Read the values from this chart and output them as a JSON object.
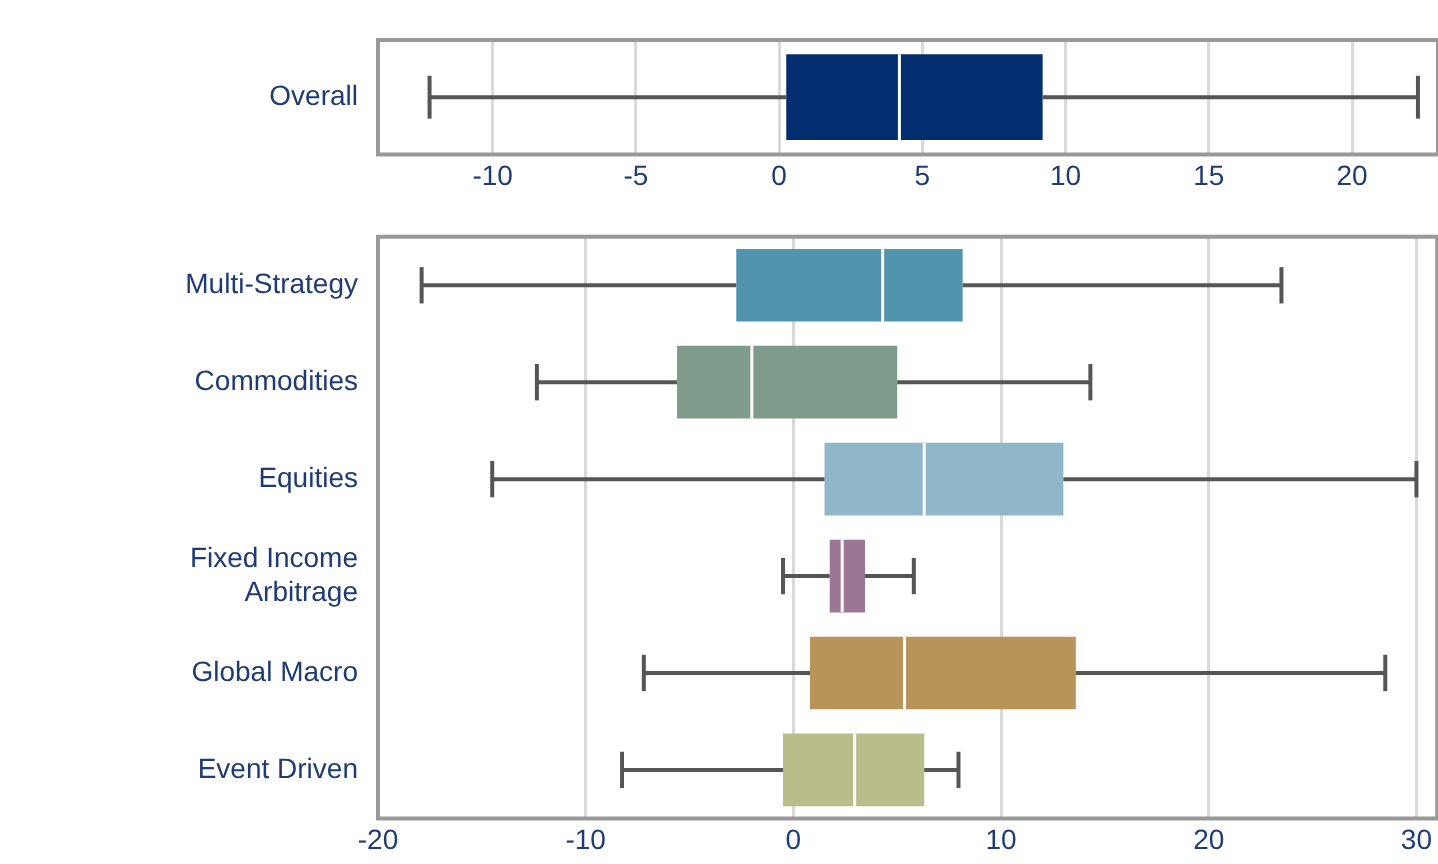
{
  "chart_data": [
    {
      "type": "box",
      "orientation": "horizontal",
      "categories": [
        "Overall"
      ],
      "colors": [
        "#022d6e"
      ],
      "boxes": [
        {
          "low": -12.2,
          "q1": 0.25,
          "median": 4.2,
          "q3": 9.2,
          "high": 22.3
        }
      ],
      "xlim": [
        -14,
        23
      ],
      "xticks": [
        -10,
        -5,
        0,
        5,
        10,
        15,
        20
      ],
      "grid": "x"
    },
    {
      "type": "box",
      "orientation": "horizontal",
      "categories": [
        "Multi-Strategy",
        "Commodities",
        "Equities",
        "Fixed Income Arbitrage",
        "Global Macro",
        "Event Driven"
      ],
      "colors": [
        "#5294ae",
        "#7f9b8c",
        "#8fb7c9",
        "#9b7795",
        "#b8935a",
        "#b8bd8a"
      ],
      "boxes": [
        {
          "low": -17.9,
          "q1": -2.75,
          "median": 4.3,
          "q3": 8.15,
          "high": 23.5
        },
        {
          "low": -12.35,
          "q1": -5.6,
          "median": -2,
          "q3": 5,
          "high": 14.3
        },
        {
          "low": -14.5,
          "q1": 1.5,
          "median": 6.3,
          "q3": 13,
          "high": 30
        },
        {
          "low": -0.5,
          "q1": 1.75,
          "median": 2.35,
          "q3": 3.45,
          "high": 5.8
        },
        {
          "low": -7.2,
          "q1": 0.8,
          "median": 5.35,
          "q3": 13.6,
          "high": 28.5
        },
        {
          "low": -8.25,
          "q1": -0.5,
          "median": 2.95,
          "q3": 6.3,
          "high": 7.95
        }
      ],
      "xlim": [
        -20,
        31
      ],
      "xticks": [
        -20,
        -10,
        0,
        10,
        20,
        30
      ],
      "grid": "x"
    }
  ]
}
